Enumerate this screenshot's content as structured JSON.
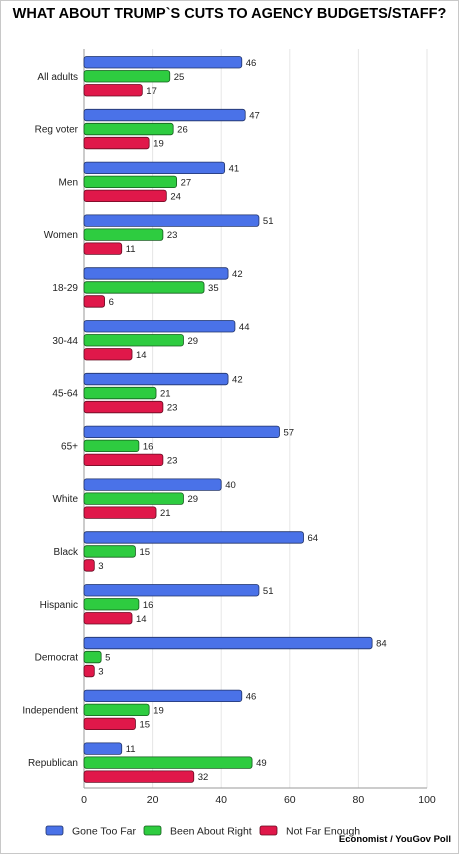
{
  "title": "WHAT ABOUT TRUMP`S CUTS TO AGENCY BUDGETS/STAFF?",
  "source": "Economist / YouGov Poll",
  "chart_data": {
    "type": "bar",
    "orientation": "horizontal",
    "title": "WHAT ABOUT TRUMP`S CUTS TO AGENCY BUDGETS/STAFF?",
    "categories": [
      "All adults",
      "Reg voter",
      "Men",
      "Women",
      "18-29",
      "30-44",
      "45-64",
      "65+",
      "White",
      "Black",
      "Hispanic",
      "Democrat",
      "Independent",
      "Republican"
    ],
    "series": [
      {
        "name": "Gone Too Far",
        "color": "#4a72e8",
        "values": [
          46,
          47,
          41,
          51,
          42,
          44,
          42,
          57,
          40,
          64,
          51,
          84,
          46,
          11
        ]
      },
      {
        "name": "Been About Right",
        "color": "#2ecc40",
        "values": [
          25,
          26,
          27,
          23,
          35,
          29,
          21,
          16,
          29,
          15,
          16,
          5,
          19,
          49
        ]
      },
      {
        "name": "Not Far Enough",
        "color": "#e0184a",
        "values": [
          17,
          19,
          24,
          11,
          6,
          14,
          23,
          23,
          21,
          3,
          14,
          3,
          15,
          32
        ]
      }
    ],
    "xlim": [
      0,
      100
    ],
    "xticks": [
      0,
      20,
      40,
      60,
      80,
      100
    ],
    "grid": true,
    "legend_position": "bottom",
    "data_labels": true
  }
}
